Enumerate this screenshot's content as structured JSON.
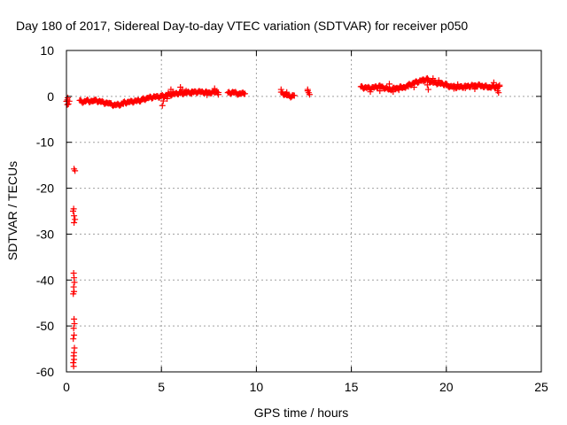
{
  "chart_data": {
    "type": "scatter",
    "title": "Day 180 of 2017, Sidereal Day-to-day VTEC variation (SDTVAR) for receiver p050",
    "xlabel": "GPS time / hours",
    "ylabel": "SDTVAR / TECUs",
    "xlim": [
      0,
      25
    ],
    "ylim": [
      -60,
      10
    ],
    "xticks": [
      0,
      5,
      10,
      15,
      20,
      25
    ],
    "yticks": [
      10,
      0,
      -10,
      -20,
      -30,
      -40,
      -50,
      -60
    ],
    "grid": true,
    "marker": "+",
    "color": "#ff0000",
    "segments": [
      {
        "x0": 0.0,
        "x1": 0.15,
        "y": [
          -1.2,
          -1.0,
          -1.6,
          -0.8
        ]
      },
      {
        "x0": 0.7,
        "x1": 1.5,
        "y": [
          -1.0,
          -1.2,
          -0.9,
          -1.1,
          -1.0
        ]
      },
      {
        "x0": 1.5,
        "x1": 2.3,
        "y": [
          -0.9,
          -1.1,
          -1.4,
          -1.6
        ]
      },
      {
        "x0": 2.3,
        "x1": 3.0,
        "y": [
          -1.7,
          -1.9,
          -1.8,
          -1.6
        ]
      },
      {
        "x0": 3.0,
        "x1": 4.0,
        "y": [
          -1.4,
          -1.2,
          -1.0,
          -0.8
        ]
      },
      {
        "x0": 4.0,
        "x1": 5.0,
        "y": [
          -0.7,
          -0.3,
          -0.1,
          0.0
        ]
      },
      {
        "x0": 5.0,
        "x1": 6.0,
        "y": [
          0.0,
          0.3,
          0.5,
          0.8
        ]
      },
      {
        "x0": 6.0,
        "x1": 8.0,
        "y": [
          0.6,
          0.9,
          1.0,
          0.8,
          1.0
        ]
      },
      {
        "x0": 8.5,
        "x1": 9.4,
        "y": [
          0.7,
          0.9,
          0.5,
          0.8
        ]
      },
      {
        "x0": 11.3,
        "x1": 12.0,
        "y": [
          0.8,
          0.4,
          0.0,
          0.2
        ]
      },
      {
        "x0": 15.5,
        "x1": 18.0,
        "y": [
          2.0,
          1.8,
          2.2,
          1.5,
          1.9,
          2.1
        ]
      },
      {
        "x0": 18.0,
        "x1": 19.0,
        "y": [
          2.4,
          3.0,
          3.4,
          3.8
        ]
      },
      {
        "x0": 19.0,
        "x1": 20.0,
        "y": [
          3.5,
          3.0,
          2.8,
          2.6
        ]
      },
      {
        "x0": 20.0,
        "x1": 22.8,
        "y": [
          2.3,
          2.0,
          2.2,
          2.4,
          2.0,
          2.2
        ]
      }
    ],
    "points": [
      [
        0.07,
        -0.3
      ],
      [
        0.05,
        -1.8
      ],
      [
        0.4,
        -15.8
      ],
      [
        0.45,
        -16.2
      ],
      [
        0.35,
        -25.0
      ],
      [
        0.4,
        -26.0
      ],
      [
        0.45,
        -26.8
      ],
      [
        0.4,
        -27.5
      ],
      [
        0.38,
        -24.5
      ],
      [
        0.38,
        -38.5
      ],
      [
        0.4,
        -39.5
      ],
      [
        0.42,
        -40.5
      ],
      [
        0.38,
        -41.5
      ],
      [
        0.4,
        -42.5
      ],
      [
        0.36,
        -43.0
      ],
      [
        0.4,
        -48.5
      ],
      [
        0.42,
        -49.5
      ],
      [
        0.38,
        -50.5
      ],
      [
        0.4,
        -52.0
      ],
      [
        0.36,
        -52.8
      ],
      [
        0.42,
        -54.8
      ],
      [
        0.4,
        -55.8
      ],
      [
        0.38,
        -56.5
      ],
      [
        0.4,
        -57.3
      ],
      [
        0.36,
        -58.0
      ],
      [
        0.38,
        -58.8
      ],
      [
        5.05,
        -2.0
      ],
      [
        5.1,
        -1.0
      ],
      [
        5.5,
        1.5
      ],
      [
        5.6,
        1.0
      ],
      [
        5.3,
        -0.5
      ],
      [
        5.35,
        0.6
      ],
      [
        6.0,
        2.0
      ],
      [
        6.1,
        1.5
      ],
      [
        6.3,
        1.2
      ],
      [
        6.6,
        0.6
      ],
      [
        7.4,
        0.3
      ],
      [
        7.8,
        1.7
      ],
      [
        8.0,
        0.4
      ],
      [
        11.3,
        1.5
      ],
      [
        11.6,
        0.9
      ],
      [
        11.9,
        0.2
      ],
      [
        12.7,
        1.5
      ],
      [
        12.75,
        0.8
      ],
      [
        12.8,
        0.4
      ],
      [
        12.7,
        1.2
      ],
      [
        16.0,
        1.0
      ],
      [
        16.5,
        1.2
      ],
      [
        17.0,
        2.7
      ],
      [
        17.5,
        1.4
      ],
      [
        17.2,
        1.0
      ],
      [
        18.3,
        2.0
      ],
      [
        18.8,
        3.3
      ],
      [
        19.0,
        2.5
      ],
      [
        19.05,
        1.5
      ],
      [
        19.3,
        3.9
      ],
      [
        19.6,
        3.5
      ],
      [
        20.4,
        1.7
      ],
      [
        20.6,
        2.6
      ],
      [
        21.0,
        1.8
      ],
      [
        21.5,
        1.6
      ],
      [
        22.0,
        2.1
      ],
      [
        22.5,
        3.0
      ],
      [
        22.6,
        1.8
      ],
      [
        22.7,
        1.2
      ],
      [
        22.8,
        2.2
      ],
      [
        22.75,
        0.8
      ]
    ]
  }
}
